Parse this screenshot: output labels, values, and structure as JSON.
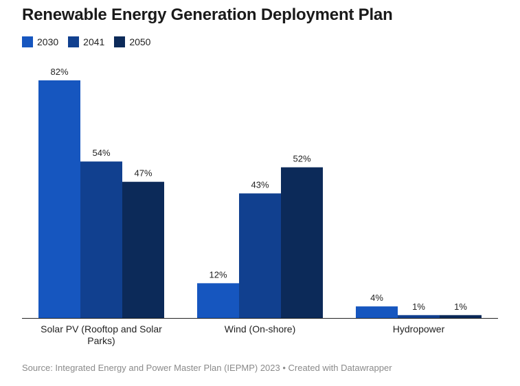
{
  "chart_data": {
    "type": "bar",
    "title": "Renewable Energy Generation Deployment Plan",
    "categories": [
      "Solar PV (Rooftop and Solar Parks)",
      "Wind (On-shore)",
      "Hydropower"
    ],
    "series": [
      {
        "name": "2030",
        "values": [
          82,
          12,
          4
        ],
        "labels": [
          "82%",
          "12%",
          "4%"
        ],
        "color": "#1656bf"
      },
      {
        "name": "2041",
        "values": [
          54,
          43,
          1
        ],
        "labels": [
          "54%",
          "43%",
          "1%"
        ],
        "color": "#11408f"
      },
      {
        "name": "2050",
        "values": [
          47,
          52,
          1
        ],
        "labels": [
          "47%",
          "52%",
          "1%"
        ],
        "color": "#0c2a59"
      }
    ],
    "ylim": [
      0,
      100
    ],
    "grid": false,
    "legend": "top-left",
    "source": "Source: Integrated Energy and Power Master Plan (IEPMP) 2023 • Created with Datawrapper"
  }
}
